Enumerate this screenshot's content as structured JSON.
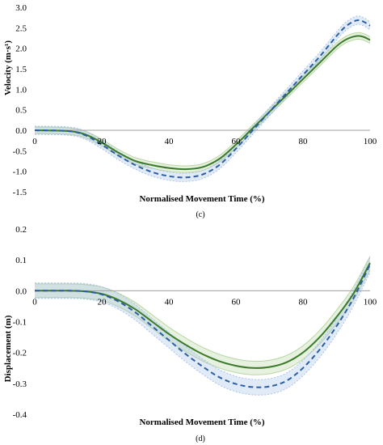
{
  "chart_data": [
    {
      "type": "line",
      "panel_label": "(c)",
      "xlabel": "Normalised Movement Time (%)",
      "ylabel": "Velocity (m·s¹)",
      "xlim": [
        0,
        100
      ],
      "ylim": [
        -1.5,
        3.0
      ],
      "xticks": [
        "0",
        "20",
        "40",
        "60",
        "80",
        "100"
      ],
      "yticks": [
        "3.0",
        "2.5",
        "2.0",
        "1.5",
        "1.0",
        "0.5",
        "0.0",
        "-0.5",
        "-1.0",
        "-1.5"
      ],
      "grid": false,
      "series": [
        {
          "style": "solid",
          "color": "#3a7a2a",
          "band_color": "#b9d6a3",
          "x": [
            0,
            10,
            15,
            20,
            25,
            30,
            35,
            40,
            45,
            50,
            55,
            60,
            65,
            70,
            75,
            80,
            85,
            90,
            93,
            96,
            98,
            100
          ],
          "values": [
            0.0,
            -0.02,
            -0.1,
            -0.3,
            -0.55,
            -0.75,
            -0.85,
            -0.92,
            -0.95,
            -0.9,
            -0.7,
            -0.35,
            0.05,
            0.45,
            0.85,
            1.25,
            1.65,
            2.05,
            2.22,
            2.3,
            2.28,
            2.2
          ],
          "band": 0.08
        },
        {
          "style": "dashed",
          "color": "#2a5fa5",
          "band_color": "#a9c3e8",
          "x": [
            0,
            10,
            15,
            20,
            25,
            30,
            35,
            40,
            45,
            50,
            55,
            60,
            65,
            70,
            75,
            80,
            85,
            90,
            93,
            96,
            98,
            100
          ],
          "values": [
            0.0,
            -0.02,
            -0.12,
            -0.35,
            -0.62,
            -0.85,
            -1.02,
            -1.12,
            -1.15,
            -1.08,
            -0.85,
            -0.45,
            0.0,
            0.45,
            0.9,
            1.35,
            1.8,
            2.3,
            2.55,
            2.68,
            2.65,
            2.55
          ],
          "band": 0.1
        }
      ]
    },
    {
      "type": "line",
      "panel_label": "(d)",
      "xlabel": "Normalised Movement Time (%)",
      "ylabel": "Displacement (m)",
      "xlim": [
        0,
        100
      ],
      "ylim": [
        -0.4,
        0.2
      ],
      "xticks": [
        "0",
        "20",
        "40",
        "60",
        "80",
        "100"
      ],
      "yticks": [
        "0.2",
        "0.1",
        "0.0",
        "-0.1",
        "-0.2",
        "-0.3",
        "-0.4"
      ],
      "grid": false,
      "series": [
        {
          "style": "solid",
          "color": "#3a7a2a",
          "band_color": "#b9d6a3",
          "x": [
            0,
            10,
            15,
            20,
            25,
            30,
            35,
            40,
            45,
            50,
            55,
            60,
            65,
            70,
            75,
            80,
            85,
            90,
            95,
            100
          ],
          "values": [
            0.0,
            0.0,
            -0.002,
            -0.01,
            -0.03,
            -0.06,
            -0.1,
            -0.14,
            -0.175,
            -0.205,
            -0.228,
            -0.243,
            -0.25,
            -0.247,
            -0.232,
            -0.2,
            -0.15,
            -0.085,
            -0.01,
            0.09
          ],
          "band": 0.022
        },
        {
          "style": "dashed",
          "color": "#2a5fa5",
          "band_color": "#a9c3e8",
          "x": [
            0,
            10,
            15,
            20,
            25,
            30,
            35,
            40,
            45,
            50,
            55,
            60,
            65,
            70,
            75,
            80,
            85,
            90,
            95,
            100
          ],
          "values": [
            0.0,
            0.0,
            -0.002,
            -0.012,
            -0.035,
            -0.07,
            -0.115,
            -0.16,
            -0.205,
            -0.245,
            -0.28,
            -0.302,
            -0.312,
            -0.31,
            -0.292,
            -0.25,
            -0.19,
            -0.115,
            -0.025,
            0.085
          ],
          "band": 0.025
        }
      ]
    }
  ]
}
